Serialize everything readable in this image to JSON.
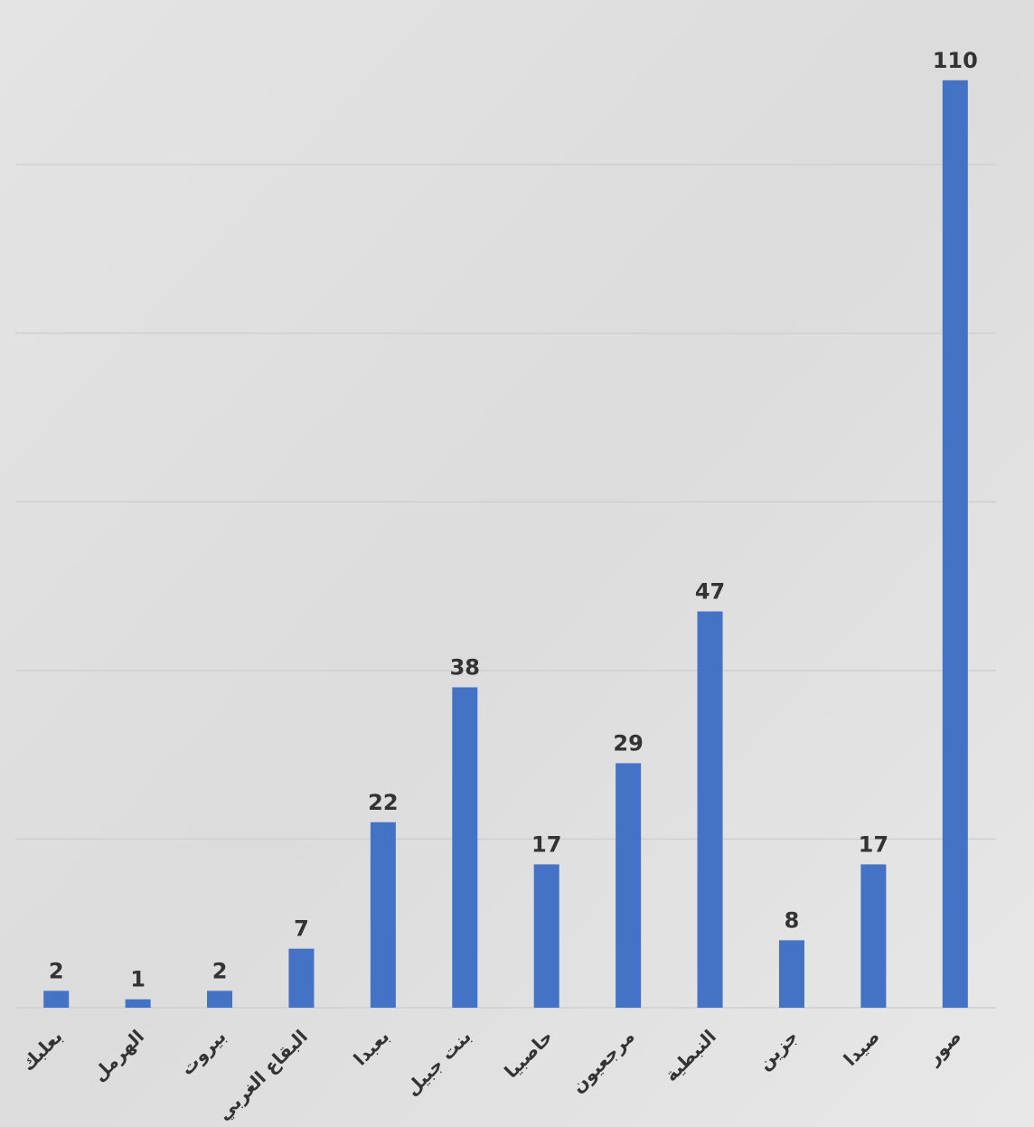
{
  "chart_data": {
    "type": "bar",
    "categories": [
      "بعلبك",
      "الهرمل",
      "بيروت",
      "البقاع الغربي",
      "بعبدا",
      "بنت جبيل",
      "حاصبيا",
      "مرجعيون",
      "النبطية",
      "جزين",
      "صيدا",
      "صور"
    ],
    "values": [
      2,
      1,
      2,
      7,
      22,
      38,
      17,
      29,
      47,
      8,
      17,
      110
    ],
    "color": "#4472c4",
    "ylim": [
      0,
      120
    ],
    "yticks": [
      0,
      20,
      40,
      60,
      80,
      100
    ],
    "grid": true
  }
}
